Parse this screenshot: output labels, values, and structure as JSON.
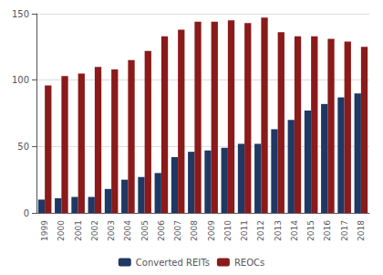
{
  "chart_data": {
    "type": "bar",
    "categories": [
      "1999",
      "2000",
      "2001",
      "2002",
      "2003",
      "2004",
      "2005",
      "2006",
      "2007",
      "2008",
      "2009",
      "2010",
      "2011",
      "2012",
      "2013",
      "2014",
      "2015",
      "2016",
      "2017",
      "2018"
    ],
    "series": [
      {
        "name": "Converted REITs",
        "color": "#1f3864",
        "values": [
          10,
          11,
          12,
          12,
          18,
          25,
          27,
          30,
          42,
          46,
          47,
          49,
          52,
          52,
          63,
          70,
          77,
          82,
          87,
          90
        ]
      },
      {
        "name": "REOCs",
        "color": "#8b1a1a",
        "values": [
          96,
          103,
          105,
          110,
          108,
          115,
          122,
          133,
          138,
          144,
          144,
          145,
          143,
          147,
          136,
          133,
          133,
          131,
          129,
          125
        ]
      }
    ],
    "ylim": [
      0,
      150
    ],
    "yticks": [
      0,
      50,
      100,
      150
    ],
    "grid": true,
    "legend": "bottom"
  }
}
